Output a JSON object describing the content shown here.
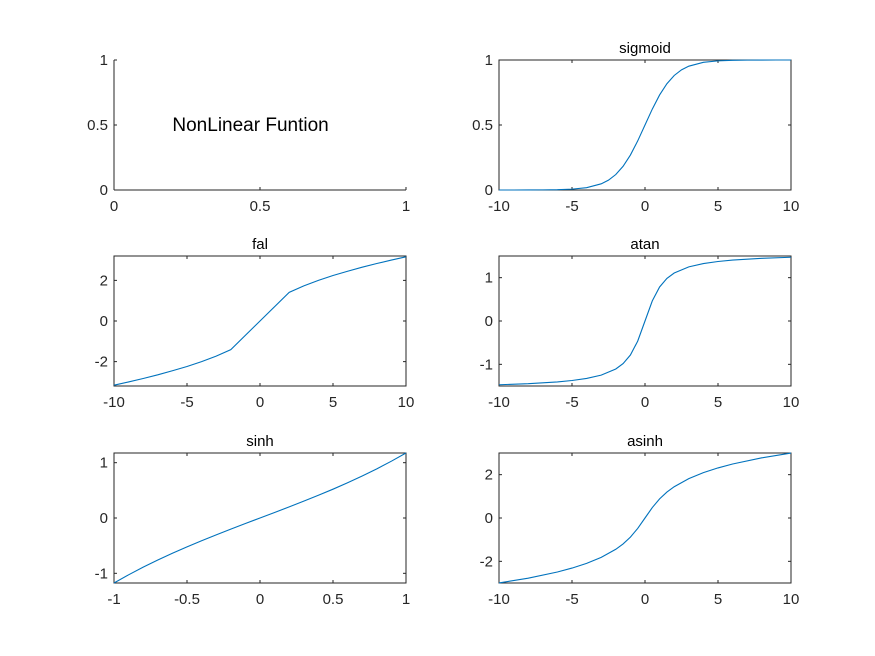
{
  "figure": {
    "background": "#ffffff",
    "axis_color": "#262626",
    "line_color": "#0072BD"
  },
  "chart_data": [
    {
      "type": "line",
      "panel": "top-left",
      "title": "",
      "annotation": "NonLinear Funtion",
      "xlim": [
        0,
        1
      ],
      "ylim": [
        0,
        1
      ],
      "xticks": [
        0,
        0.5,
        1
      ],
      "xtick_labels": [
        "0",
        "0.5",
        "1"
      ],
      "yticks": [
        0,
        0.5,
        1
      ],
      "ytick_labels": [
        "0",
        "0.5",
        "1"
      ],
      "box": false,
      "series": []
    },
    {
      "type": "line",
      "panel": "top-right",
      "title": "sigmoid",
      "xlim": [
        -10,
        10
      ],
      "ylim": [
        0,
        1
      ],
      "xticks": [
        -10,
        -5,
        0,
        5,
        10
      ],
      "xtick_labels": [
        "-10",
        "-5",
        "0",
        "5",
        "10"
      ],
      "yticks": [
        0,
        0.5,
        1
      ],
      "ytick_labels": [
        "0",
        "0.5",
        "1"
      ],
      "box": true,
      "series": [
        {
          "x": [
            -10,
            -9,
            -8,
            -7,
            -6,
            -5,
            -4,
            -3,
            -2.5,
            -2,
            -1.5,
            -1,
            -0.5,
            0,
            0.5,
            1,
            1.5,
            2,
            2.5,
            3,
            4,
            5,
            6,
            7,
            8,
            9,
            10
          ],
          "y": [
            0.0,
            0.0001,
            0.0003,
            0.0009,
            0.0025,
            0.0067,
            0.018,
            0.0474,
            0.0759,
            0.1192,
            0.1824,
            0.2689,
            0.3775,
            0.5,
            0.6225,
            0.7311,
            0.8176,
            0.8808,
            0.9241,
            0.9526,
            0.982,
            0.9933,
            0.9975,
            0.9991,
            0.9997,
            0.9999,
            1.0
          ]
        }
      ]
    },
    {
      "type": "line",
      "panel": "middle-left",
      "title": "fal",
      "xlim": [
        -10,
        10
      ],
      "ylim": [
        -3.2,
        3.2
      ],
      "xticks": [
        -10,
        -5,
        0,
        5,
        10
      ],
      "xtick_labels": [
        "-10",
        "-5",
        "0",
        "5",
        "10"
      ],
      "yticks": [
        -2,
        0,
        2
      ],
      "ytick_labels": [
        "-2",
        "0",
        "2"
      ],
      "box": true,
      "series": [
        {
          "x": [
            -10,
            -9,
            -8,
            -7,
            -6,
            -5,
            -4,
            -3,
            -2,
            0,
            2,
            3,
            4,
            5,
            6,
            7,
            8,
            9,
            10
          ],
          "y": [
            -3.16,
            -3.0,
            -2.83,
            -2.65,
            -2.45,
            -2.24,
            -2.0,
            -1.73,
            -1.41,
            0.0,
            1.41,
            1.73,
            2.0,
            2.24,
            2.45,
            2.65,
            2.83,
            3.0,
            3.16
          ]
        }
      ]
    },
    {
      "type": "line",
      "panel": "middle-right",
      "title": "atan",
      "xlim": [
        -10,
        10
      ],
      "ylim": [
        -1.5,
        1.5
      ],
      "xticks": [
        -10,
        -5,
        0,
        5,
        10
      ],
      "xtick_labels": [
        "-10",
        "-5",
        "0",
        "5",
        "10"
      ],
      "yticks": [
        -1,
        0,
        1
      ],
      "ytick_labels": [
        "-1",
        "0",
        "1"
      ],
      "box": true,
      "series": [
        {
          "x": [
            -10,
            -8,
            -6,
            -5,
            -4,
            -3,
            -2,
            -1.5,
            -1,
            -0.5,
            0,
            0.5,
            1,
            1.5,
            2,
            3,
            4,
            5,
            6,
            8,
            10
          ],
          "y": [
            -1.471,
            -1.446,
            -1.406,
            -1.373,
            -1.326,
            -1.249,
            -1.107,
            -0.983,
            -0.785,
            -0.464,
            0.0,
            0.464,
            0.785,
            0.983,
            1.107,
            1.249,
            1.326,
            1.373,
            1.406,
            1.446,
            1.471
          ]
        }
      ]
    },
    {
      "type": "line",
      "panel": "bottom-left",
      "title": "sinh",
      "xlim": [
        -1,
        1
      ],
      "ylim": [
        -1.175,
        1.175
      ],
      "xticks": [
        -1,
        -0.5,
        0,
        0.5,
        1
      ],
      "xtick_labels": [
        "-1",
        "-0.5",
        "0",
        "0.5",
        "1"
      ],
      "yticks": [
        -1,
        0,
        1
      ],
      "ytick_labels": [
        "-1",
        "0",
        "1"
      ],
      "box": true,
      "series": [
        {
          "x": [
            -1,
            -0.9,
            -0.8,
            -0.7,
            -0.6,
            -0.5,
            -0.4,
            -0.3,
            -0.2,
            -0.1,
            0,
            0.1,
            0.2,
            0.3,
            0.4,
            0.5,
            0.6,
            0.7,
            0.8,
            0.9,
            1
          ],
          "y": [
            -1.175,
            -1.027,
            -0.888,
            -0.759,
            -0.637,
            -0.521,
            -0.411,
            -0.305,
            -0.201,
            -0.1,
            0.0,
            0.1,
            0.201,
            0.305,
            0.411,
            0.521,
            0.637,
            0.759,
            0.888,
            1.027,
            1.175
          ]
        }
      ]
    },
    {
      "type": "line",
      "panel": "bottom-right",
      "title": "asinh",
      "xlim": [
        -10,
        10
      ],
      "ylim": [
        -3,
        3
      ],
      "xticks": [
        -10,
        -5,
        0,
        5,
        10
      ],
      "xtick_labels": [
        "-10",
        "-5",
        "0",
        "5",
        "10"
      ],
      "yticks": [
        -2,
        0,
        2
      ],
      "ytick_labels": [
        "-2",
        "0",
        "2"
      ],
      "box": true,
      "series": [
        {
          "x": [
            -10,
            -8,
            -6,
            -5,
            -4,
            -3,
            -2,
            -1.5,
            -1,
            -0.5,
            0,
            0.5,
            1,
            1.5,
            2,
            3,
            4,
            5,
            6,
            8,
            10
          ],
          "y": [
            -2.998,
            -2.776,
            -2.492,
            -2.312,
            -2.095,
            -1.818,
            -1.444,
            -1.195,
            -0.881,
            -0.481,
            0.0,
            0.481,
            0.881,
            1.195,
            1.444,
            1.818,
            2.095,
            2.312,
            2.492,
            2.776,
            2.998
          ]
        }
      ]
    }
  ]
}
